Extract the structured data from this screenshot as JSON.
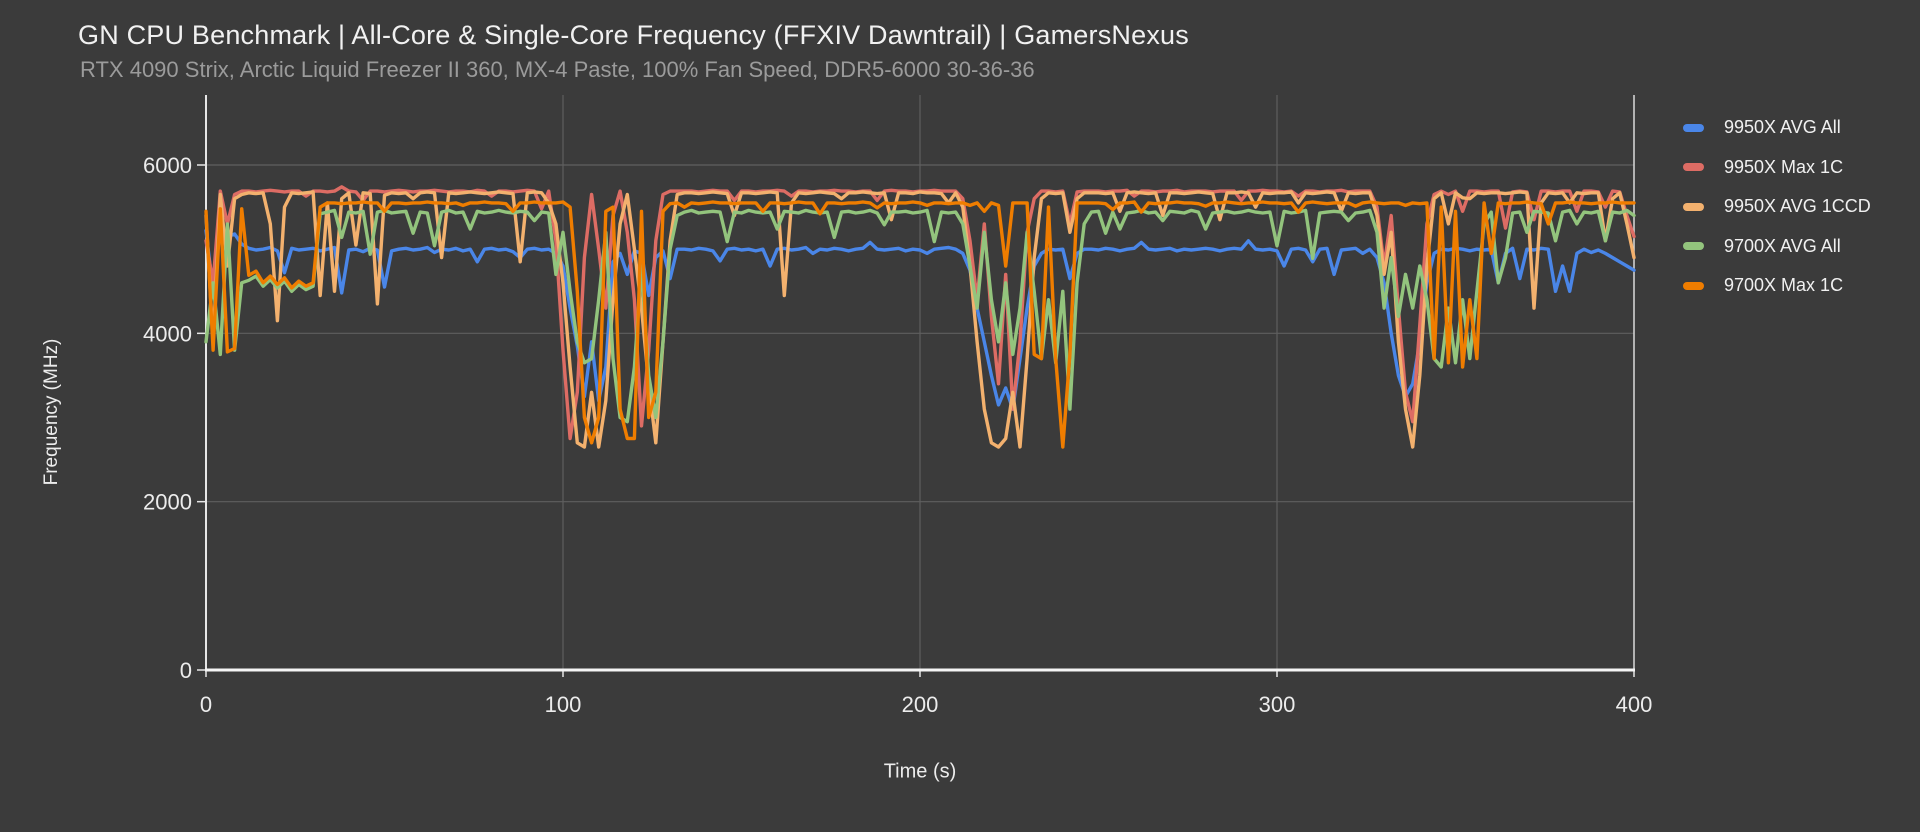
{
  "page": {
    "title": "GN CPU Benchmark | All-Core & Single-Core Frequency (FFXIV Dawntrail) | GamersNexus",
    "subtitle": "RTX 4090 Strix, Arctic Liquid Freezer II 360, MX-4 Paste, 100% Fan Speed, DDR5-6000 30-36-36"
  },
  "colors": {
    "background": "#3b3b3b",
    "grid": "#5f5f5f",
    "axis": "#e6e6e6",
    "axis_bottom": "#f5f5f5",
    "plot_right_border": "#d9d9d9",
    "tick_text": "#ececec",
    "title_text": "#f1f1f1",
    "subtitle_text": "#9b9b9b",
    "legend_text": "#f0f0f0"
  },
  "chart_data": {
    "type": "line",
    "title": "GN CPU Benchmark | All-Core & Single-Core Frequency (FFXIV Dawntrail) | GamersNexus",
    "subtitle": "RTX 4090 Strix, Arctic Liquid Freezer II 360, MX-4 Paste, 100% Fan Speed, DDR5-6000 30-36-36",
    "xlabel": "Time (s)",
    "ylabel": "Frequency (MHz)",
    "xlim": [
      0,
      400
    ],
    "ylim": [
      0,
      6830
    ],
    "x_ticks": [
      0,
      100,
      200,
      300,
      400
    ],
    "y_ticks": [
      0,
      2000,
      4000,
      6000
    ],
    "grid": true,
    "legend_position": "right",
    "sample_interval_s": 2,
    "units": "MHz",
    "series": [
      {
        "name": "9950X AVG All",
        "color": "#4a86e8",
        "values": [
          5220,
          4500,
          5250,
          5150,
          5180,
          5060,
          5010,
          4990,
          5000,
          5020,
          4980,
          4720,
          5010,
          4990,
          5000,
          5010,
          4980,
          5000,
          5020,
          4480,
          4990,
          5000,
          4970,
          5010,
          4990,
          4550,
          4980,
          5000,
          5010,
          4990,
          5000,
          5020,
          4960,
          5000,
          4990,
          5010,
          4980,
          5000,
          4850,
          5000,
          5010,
          4990,
          5000,
          4970,
          4900,
          5000,
          5010,
          4990,
          5000,
          4950,
          4800,
          4300,
          3850,
          3250,
          3900,
          3200,
          3600,
          4850,
          4950,
          4700,
          4980,
          4950,
          4450,
          4900,
          4980,
          4650,
          5000,
          5000,
          4990,
          5010,
          5000,
          4980,
          4860,
          5000,
          5010,
          4990,
          5000,
          4980,
          5000,
          4800,
          5000,
          5010,
          4990,
          5000,
          5020,
          4950,
          5000,
          4990,
          5010,
          5000,
          4980,
          5000,
          5010,
          5080,
          5000,
          4990,
          5000,
          5010,
          4980,
          5000,
          4990,
          4950,
          5000,
          5010,
          5020,
          5000,
          4950,
          4750,
          4300,
          3900,
          3500,
          3150,
          3350,
          3100,
          3700,
          4300,
          4800,
          4950,
          5000,
          4990,
          5000,
          4650,
          4950,
          5000,
          5000,
          4990,
          5010,
          5000,
          4980,
          5000,
          5010,
          5080,
          5000,
          4990,
          5000,
          5010,
          4980,
          5000,
          4990,
          5000,
          5010,
          5000,
          4980,
          5000,
          5010,
          5000,
          5100,
          5000,
          4990,
          5000,
          4980,
          4800,
          5000,
          5010,
          4990,
          4850,
          5000,
          5010,
          4700,
          4990,
          5000,
          5010,
          4950,
          5000,
          4900,
          4600,
          4000,
          3500,
          3250,
          3400,
          3900,
          4600,
          4950,
          5000,
          4990,
          5010,
          5000,
          4980,
          5000,
          4990,
          5000,
          4600,
          4950,
          5010,
          4650,
          5000,
          4990,
          5010,
          5000,
          4500,
          4800,
          4500,
          4950,
          5000,
          4960,
          4990,
          4950,
          4900,
          4850,
          4800,
          4750
        ]
      },
      {
        "name": "9950X Max 1C",
        "color": "#dd6c64",
        "values": [
          5100,
          4600,
          5690,
          5300,
          5650,
          5690,
          5690,
          5680,
          5690,
          5700,
          5690,
          5680,
          5690,
          5690,
          5630,
          5690,
          5690,
          5680,
          5690,
          5740,
          5690,
          5680,
          5580,
          5690,
          5690,
          5680,
          5690,
          5700,
          5690,
          5680,
          5690,
          5690,
          5700,
          5690,
          5680,
          5690,
          5690,
          5680,
          5700,
          5690,
          5630,
          5690,
          5690,
          5680,
          5690,
          5700,
          5690,
          5480,
          5690,
          5100,
          3800,
          2750,
          3300,
          4900,
          5650,
          5000,
          4300,
          5400,
          5690,
          5200,
          4400,
          2900,
          3800,
          5100,
          5650,
          5690,
          5690,
          5690,
          5690,
          5680,
          5690,
          5700,
          5690,
          5690,
          5580,
          5690,
          5690,
          5680,
          5690,
          5690,
          5700,
          5690,
          5630,
          5690,
          5690,
          5680,
          5690,
          5690,
          5700,
          5690,
          5690,
          5680,
          5690,
          5690,
          5580,
          5690,
          5700,
          5690,
          5690,
          5680,
          5690,
          5690,
          5700,
          5690,
          5690,
          5690,
          5600,
          5100,
          4400,
          5300,
          4200,
          3400,
          4700,
          3100,
          3900,
          5200,
          5600,
          5690,
          5690,
          5680,
          5690,
          5300,
          5680,
          5690,
          5690,
          5690,
          5680,
          5690,
          5690,
          5700,
          5630,
          5690,
          5690,
          5680,
          5690,
          5690,
          5700,
          5680,
          5690,
          5690,
          5690,
          5680,
          5690,
          5690,
          5690,
          5580,
          5690,
          5690,
          5700,
          5690,
          5690,
          5680,
          5690,
          5630,
          5690,
          5690,
          5680,
          5690,
          5690,
          5700,
          5680,
          5690,
          5690,
          5690,
          5500,
          4800,
          5400,
          4300,
          3300,
          2950,
          4100,
          5300,
          5650,
          5690,
          5650,
          5690,
          5450,
          5690,
          5690,
          5680,
          5690,
          5690,
          5250,
          5680,
          5690,
          5680,
          5350,
          5690,
          5690,
          5680,
          5690,
          5690,
          5450,
          5690,
          5690,
          5680,
          5500,
          5690,
          5680,
          5400,
          5150
        ]
      },
      {
        "name": "9950X AVG 1CCD",
        "color": "#f3b16e",
        "values": [
          5400,
          3900,
          5650,
          4800,
          5600,
          5650,
          5670,
          5660,
          5670,
          5300,
          4150,
          5500,
          5670,
          5660,
          5670,
          5680,
          4450,
          5550,
          4500,
          5600,
          5670,
          5050,
          5670,
          5660,
          4350,
          5640,
          5670,
          5660,
          5670,
          5600,
          5670,
          5680,
          5670,
          4900,
          5670,
          5660,
          5670,
          5680,
          5670,
          5660,
          5670,
          5680,
          5670,
          5660,
          4850,
          5670,
          5680,
          5670,
          5550,
          5300,
          4600,
          3600,
          2700,
          2650,
          3300,
          2650,
          3200,
          4400,
          5300,
          5650,
          5000,
          4300,
          3400,
          2700,
          3900,
          5100,
          5650,
          5670,
          5670,
          5660,
          5670,
          5680,
          5670,
          5660,
          5400,
          5670,
          5670,
          5660,
          5670,
          5680,
          5670,
          4450,
          5550,
          5670,
          5660,
          5670,
          5680,
          5670,
          5660,
          5600,
          5670,
          5670,
          5680,
          5670,
          5660,
          5670,
          5350,
          5670,
          5670,
          5660,
          5680,
          5670,
          5670,
          5660,
          5550,
          5670,
          5500,
          4800,
          3900,
          3100,
          2700,
          2650,
          2750,
          3300,
          2650,
          3700,
          4900,
          5600,
          5670,
          5660,
          5670,
          5200,
          5600,
          5670,
          5670,
          5670,
          5660,
          5670,
          5450,
          5670,
          5680,
          5670,
          5660,
          5670,
          5400,
          5670,
          5670,
          5660,
          5670,
          5680,
          5670,
          5660,
          5350,
          5670,
          5670,
          5680,
          5670,
          5500,
          5670,
          5660,
          5670,
          5670,
          5680,
          5550,
          5670,
          5660,
          5670,
          5680,
          5670,
          5450,
          5670,
          5660,
          5670,
          5670,
          5400,
          4700,
          5200,
          3900,
          3100,
          2650,
          3500,
          4800,
          5600,
          5670,
          5300,
          5670,
          5610,
          5600,
          5670,
          5660,
          5670,
          5670,
          5660,
          5670,
          5680,
          5670,
          4300,
          5550,
          5670,
          5660,
          5670,
          5550,
          5670,
          5660,
          5670,
          5670,
          5100,
          5600,
          5670,
          5300,
          4900
        ]
      },
      {
        "name": "9700X AVG All",
        "color": "#93c47d",
        "values": [
          3900,
          4600,
          3750,
          5300,
          3800,
          4600,
          4630,
          4680,
          4560,
          4640,
          4540,
          4620,
          4500,
          4580,
          4520,
          4560,
          5420,
          5440,
          5460,
          5140,
          5440,
          5430,
          5450,
          4940,
          5440,
          5460,
          5430,
          5440,
          5450,
          5190,
          5440,
          5430,
          5040,
          5440,
          5460,
          5430,
          5440,
          5240,
          5450,
          5430,
          5440,
          5460,
          5440,
          5430,
          5450,
          5440,
          5340,
          5440,
          5430,
          4700,
          5200,
          4500,
          3900,
          3650,
          3700,
          4400,
          5200,
          3700,
          3000,
          2950,
          3600,
          4800,
          3500,
          3000,
          3900,
          5000,
          5400,
          5440,
          5460,
          5430,
          5440,
          5450,
          5440,
          5090,
          5440,
          5430,
          5460,
          5440,
          5430,
          5440,
          5240,
          5450,
          5440,
          5430,
          5460,
          5440,
          5430,
          5440,
          5140,
          5440,
          5450,
          5430,
          5440,
          5460,
          5430,
          5290,
          5440,
          5440,
          5450,
          5430,
          5440,
          5460,
          5090,
          5440,
          5430,
          5440,
          5300,
          4800,
          4300,
          5200,
          4400,
          3900,
          4600,
          3750,
          4300,
          5200,
          4500,
          3700,
          4400,
          3650,
          4500,
          3100,
          4600,
          5300,
          5440,
          5450,
          5190,
          5440,
          5240,
          5430,
          5440,
          5460,
          5430,
          5440,
          5340,
          5450,
          5440,
          5430,
          5460,
          5440,
          5240,
          5430,
          5440,
          5450,
          5430,
          5440,
          5460,
          5440,
          5430,
          5440,
          5040,
          5450,
          5430,
          5440,
          5460,
          4890,
          5430,
          5440,
          5450,
          5440,
          5340,
          5430,
          5440,
          5460,
          5200,
          4300,
          4900,
          4200,
          4700,
          4300,
          4800,
          4400,
          3700,
          3600,
          4300,
          3650,
          4400,
          3700,
          4500,
          5300,
          5440,
          4600,
          4900,
          5430,
          5440,
          5200,
          5450,
          5440,
          5430,
          5100,
          5440,
          5460,
          5300,
          5440,
          5430,
          5450,
          5100,
          5440,
          5430,
          5460,
          5400
        ]
      },
      {
        "name": "9700X Max 1C",
        "color": "#ef7d00",
        "values": [
          5450,
          3800,
          5480,
          3780,
          3820,
          5480,
          4690,
          4740,
          4600,
          4680,
          4580,
          4660,
          4540,
          4620,
          4560,
          4600,
          5500,
          5550,
          5550,
          5540,
          5550,
          5550,
          5560,
          5550,
          5550,
          5450,
          5550,
          5550,
          5540,
          5550,
          5550,
          5560,
          5550,
          5550,
          5540,
          5550,
          5520,
          5550,
          5550,
          5560,
          5550,
          5550,
          5540,
          5450,
          5550,
          5550,
          5560,
          5550,
          5550,
          5550,
          5560,
          5500,
          4500,
          3000,
          2700,
          3000,
          5450,
          5500,
          3100,
          2750,
          2750,
          5450,
          3000,
          3300,
          5450,
          5540,
          5550,
          5500,
          5550,
          5540,
          5550,
          5560,
          5550,
          5550,
          5540,
          5550,
          5550,
          5550,
          5450,
          5550,
          5550,
          5540,
          5550,
          5560,
          5550,
          5550,
          5420,
          5550,
          5550,
          5540,
          5550,
          5550,
          5560,
          5550,
          5490,
          5550,
          5540,
          5550,
          5550,
          5560,
          5550,
          5520,
          5550,
          5550,
          5540,
          5550,
          5550,
          5520,
          5550,
          5450,
          5550,
          5520,
          4800,
          5550,
          5550,
          5550,
          3750,
          3700,
          5500,
          3700,
          2650,
          3750,
          5550,
          5550,
          5550,
          5550,
          5540,
          5470,
          5550,
          5550,
          5560,
          5440,
          5550,
          5540,
          5550,
          5550,
          5560,
          5550,
          5550,
          5540,
          5510,
          5550,
          5550,
          5560,
          5550,
          5540,
          5550,
          5550,
          5560,
          5550,
          5550,
          5540,
          5550,
          5440,
          5550,
          5560,
          5550,
          5540,
          5550,
          5550,
          5550,
          5510,
          5550,
          5560,
          5550,
          5540,
          5550,
          5550,
          5520,
          5550,
          5540,
          5550,
          3700,
          5500,
          3650,
          5450,
          3600,
          4400,
          3700,
          5550,
          4950,
          5550,
          5540,
          5550,
          5550,
          5560,
          5550,
          5540,
          5300,
          5550,
          5550,
          5560,
          5550,
          5550,
          5540,
          5550,
          5550,
          5560,
          5550,
          5550,
          5550
        ]
      }
    ]
  }
}
